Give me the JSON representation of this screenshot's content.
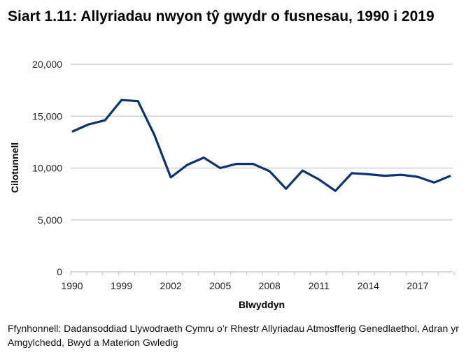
{
  "title": "Siart 1.11: Allyriadau nwyon tŷ gwydr o fusnesau, 1990 i 2019",
  "source": "Ffynhonnell: Dadansoddiad Llywodraeth Cymru o’r Rhestr Allyriadau Atmosfferig Genedlaethol, Adran yr Amgylchedd, Bwyd a Materion Gwledig",
  "line_color": "#0b3370",
  "chart_data": {
    "type": "line",
    "title": "Siart 1.11: Allyriadau nwyon tŷ gwydr o fusnesau, 1990 i 2019",
    "xlabel": "Blwyddyn",
    "ylabel": "Cilotunnell",
    "ylim": [
      0,
      20000
    ],
    "yticks": [
      0,
      5000,
      10000,
      15000,
      20000
    ],
    "ytick_labels": [
      "0",
      "5,000",
      "10,000",
      "15,000",
      "20,000"
    ],
    "xtick_labels": [
      "1990",
      "1999",
      "2002",
      "2005",
      "2008",
      "2011",
      "2014",
      "2017"
    ],
    "grid": true,
    "legend": "none",
    "categories": [
      "1990",
      "1995",
      "1998",
      "1999",
      "2000",
      "2001",
      "2002",
      "2003",
      "2004",
      "2005",
      "2006",
      "2007",
      "2008",
      "2009",
      "2010",
      "2011",
      "2012",
      "2013",
      "2014",
      "2015",
      "2016",
      "2017",
      "2018",
      "2019"
    ],
    "series": [
      {
        "name": "Allyriadau nwyon tŷ gwydr",
        "values": [
          13500,
          14200,
          14600,
          16550,
          16450,
          13200,
          9100,
          10300,
          11000,
          10000,
          10400,
          10400,
          9700,
          8000,
          9750,
          8900,
          7800,
          9500,
          9400,
          9250,
          9350,
          9150,
          8600,
          9250
        ]
      }
    ]
  }
}
